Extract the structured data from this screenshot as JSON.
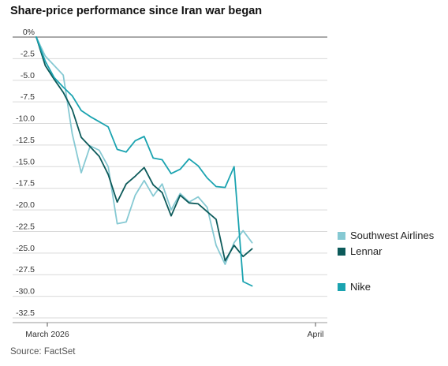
{
  "title": "Share-price performance since Iran war began",
  "source": "Source: FactSet",
  "chart_data": {
    "type": "line",
    "title": "Share-price performance since Iran war began",
    "xlabel": "",
    "ylabel": "",
    "ylim": [
      -32.5,
      0
    ],
    "y_ticks": [
      0,
      -2.5,
      -5.0,
      -7.5,
      -10.0,
      -12.5,
      -15.0,
      -17.5,
      -20.0,
      -22.5,
      -25.0,
      -27.5,
      -30.0,
      -32.5
    ],
    "y_tick_labels": [
      "0%",
      "-2.5",
      "-5.0",
      "-7.5",
      "-10.0",
      "-12.5",
      "-15.0",
      "-17.5",
      "-20.0",
      "-22.5",
      "-25.0",
      "-27.5",
      "-30.0",
      "-32.5"
    ],
    "x_tick_labels": [
      "March 2026",
      "April"
    ],
    "x_tick_index": [
      1,
      33
    ],
    "grid": true,
    "legend_position": "right",
    "x": [
      0,
      1,
      2,
      3,
      4,
      5,
      6,
      7,
      8,
      9,
      10,
      11,
      12,
      13,
      14,
      15,
      16,
      17,
      18,
      19,
      20,
      21,
      22,
      23,
      24,
      25,
      26,
      27,
      28,
      29,
      30,
      31,
      32,
      33,
      34
    ],
    "series": [
      {
        "name": "Southwest Airlines",
        "color": "#86c9d3",
        "values": [
          0,
          -2.2,
          -3.3,
          -4.4,
          -11.2,
          -15.7,
          -12.6,
          -13.1,
          -15.0,
          -21.6,
          -21.4,
          -18.3,
          -16.6,
          -18.4,
          -17.0,
          -20.0,
          -18.1,
          -19.1,
          -18.5,
          -19.7,
          -24.1,
          -26.3,
          -23.8,
          -22.4,
          -23.8
        ],
        "x": [
          0,
          1,
          2,
          3,
          4,
          5,
          6,
          7,
          8,
          9,
          10,
          11,
          12,
          13,
          14,
          15,
          16,
          17,
          18,
          19,
          20,
          21,
          22,
          23,
          24
        ]
      },
      {
        "name": "Lennar",
        "color": "#0c5a5a",
        "values": [
          0,
          -3.3,
          -4.9,
          -6.4,
          -8.4,
          -11.6,
          -12.7,
          -13.8,
          -15.9,
          -19.1,
          -17.0,
          -16.1,
          -15.1,
          -17.1,
          -18.0,
          -20.7,
          -18.3,
          -19.2,
          -19.3,
          -20.2,
          -21.1,
          -25.9,
          -24.1,
          -25.4,
          -24.5
        ],
        "x": [
          0,
          1,
          2,
          3,
          4,
          5,
          6,
          7,
          8,
          9,
          10,
          11,
          12,
          13,
          14,
          15,
          16,
          17,
          18,
          19,
          20,
          21,
          22,
          23,
          24
        ]
      },
      {
        "name": "Nike",
        "color": "#1aa3b0",
        "values": [
          0,
          -2.8,
          -4.7,
          -5.8,
          -6.8,
          -8.5,
          -9.2,
          -9.8,
          -10.4,
          -13.0,
          -13.3,
          -12.0,
          -11.5,
          -14.0,
          -14.2,
          -15.8,
          -15.3,
          -14.1,
          -14.9,
          -16.3,
          -17.3,
          -17.4,
          -15.0,
          -28.3,
          -28.8
        ],
        "x": [
          0,
          1,
          2,
          3,
          4,
          5,
          6,
          7,
          8,
          9,
          10,
          11,
          12,
          13,
          14,
          15,
          16,
          17,
          18,
          19,
          20,
          21,
          22,
          23,
          24
        ]
      }
    ]
  }
}
